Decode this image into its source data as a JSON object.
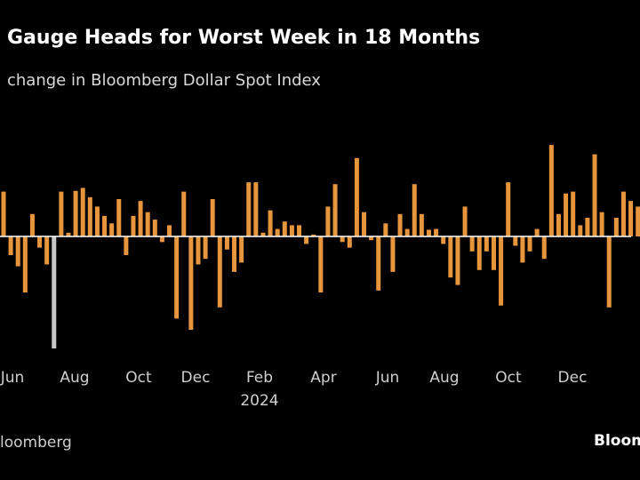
{
  "title": "Gauge Heads for Worst Week in 18 Months",
  "subtitle": "change in Bloomberg Dollar Spot Index",
  "source": "loomberg",
  "logo": "Bloom",
  "chart_data": {
    "type": "bar",
    "x_tick_labels": [
      "Jun",
      "Aug",
      "Oct",
      "Dec",
      "Feb",
      "Apr",
      "Jun",
      "Aug",
      "Oct",
      "Dec"
    ],
    "x_year_label": "2024",
    "grid": false,
    "colors": {
      "positive_negative": "#e8963e",
      "highlight": "#c8c8c8",
      "baseline": "#ffffff"
    },
    "values": [
      1.2,
      -0.5,
      -0.8,
      -1.5,
      0.6,
      -0.3,
      -0.75,
      -3.0,
      1.2,
      0.1,
      1.22,
      1.3,
      1.05,
      0.8,
      0.55,
      0.35,
      1.0,
      -0.5,
      0.55,
      0.95,
      0.65,
      0.45,
      -0.15,
      0.3,
      -2.2,
      1.2,
      -2.5,
      -0.75,
      -0.6,
      1.0,
      -1.9,
      -0.35,
      -0.95,
      -0.7,
      1.45,
      1.45,
      0.1,
      0.7,
      0.2,
      0.4,
      0.3,
      0.3,
      -0.2,
      0.05,
      -1.5,
      0.8,
      1.4,
      -0.15,
      -0.3,
      2.1,
      0.65,
      -0.1,
      -1.45,
      0.35,
      -0.95,
      0.6,
      0.2,
      1.4,
      0.6,
      0.18,
      0.2,
      -0.2,
      -1.1,
      -1.3,
      0.8,
      -0.4,
      -0.9,
      -0.4,
      -0.9,
      -1.85,
      1.45,
      -0.25,
      -0.7,
      -0.4,
      0.2,
      -0.6,
      2.45,
      0.6,
      1.15,
      1.2,
      0.3,
      0.5,
      2.2,
      0.65,
      -1.9,
      0.5,
      1.2,
      0.95,
      0.8,
      1.1,
      0.85,
      -0.35,
      -2.65
    ],
    "highlight_indices": [
      7,
      94
    ]
  }
}
